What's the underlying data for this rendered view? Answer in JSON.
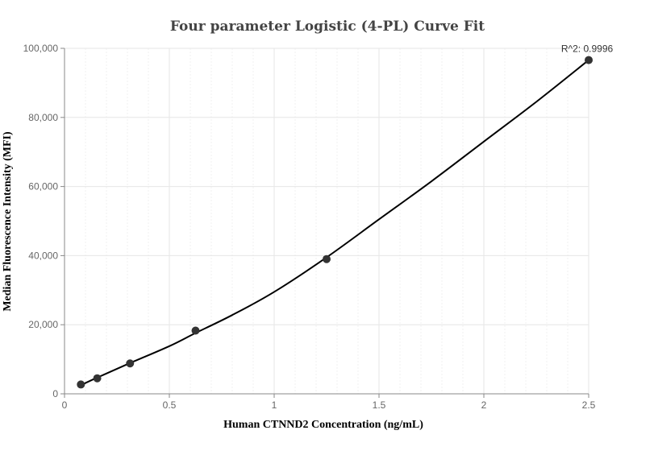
{
  "chart_data": {
    "type": "scatter",
    "title": "Four parameter Logistic (4-PL) Curve Fit",
    "xlabel": "Human CTNND2 Concentration  (ng/mL)",
    "ylabel": "Median Fluorescence Intensity (MFI)",
    "xlim": [
      0,
      2.5
    ],
    "ylim": [
      0,
      100000
    ],
    "x_ticks": [
      {
        "value": 0,
        "label": "0"
      },
      {
        "value": 0.5,
        "label": "0.5"
      },
      {
        "value": 1,
        "label": "1"
      },
      {
        "value": 1.5,
        "label": "1.5"
      },
      {
        "value": 2,
        "label": "2"
      },
      {
        "value": 2.5,
        "label": "2.5"
      }
    ],
    "y_ticks": [
      {
        "value": 0,
        "label": "0"
      },
      {
        "value": 20000,
        "label": "20,000"
      },
      {
        "value": 40000,
        "label": "40,000"
      },
      {
        "value": 60000,
        "label": "60,000"
      },
      {
        "value": 80000,
        "label": "80,000"
      },
      {
        "value": 100000,
        "label": "100,000"
      }
    ],
    "grid": true,
    "series": [
      {
        "type": "scatter",
        "points": [
          {
            "x": 0.078,
            "y": 2700
          },
          {
            "x": 0.156,
            "y": 4500
          },
          {
            "x": 0.3125,
            "y": 8800
          },
          {
            "x": 0.625,
            "y": 18300
          },
          {
            "x": 1.25,
            "y": 39000
          },
          {
            "x": 2.5,
            "y": 96600
          }
        ]
      },
      {
        "type": "line",
        "points": [
          {
            "x": 0.078,
            "y": 2500
          },
          {
            "x": 0.156,
            "y": 4700
          },
          {
            "x": 0.3125,
            "y": 8900
          },
          {
            "x": 0.5,
            "y": 13800
          },
          {
            "x": 0.625,
            "y": 17600
          },
          {
            "x": 0.8,
            "y": 22800
          },
          {
            "x": 1.0,
            "y": 29500
          },
          {
            "x": 1.25,
            "y": 39500
          },
          {
            "x": 1.5,
            "y": 50500
          },
          {
            "x": 1.75,
            "y": 61500
          },
          {
            "x": 2.0,
            "y": 73000
          },
          {
            "x": 2.25,
            "y": 84500
          },
          {
            "x": 2.5,
            "y": 96600
          }
        ]
      }
    ],
    "annotations": [
      {
        "text": "R^2: 0.9996",
        "x": 2.5,
        "y": 96600
      }
    ],
    "colors": {
      "points": "#333333",
      "curve": "#000000",
      "grid": "#e6e6e6"
    }
  }
}
